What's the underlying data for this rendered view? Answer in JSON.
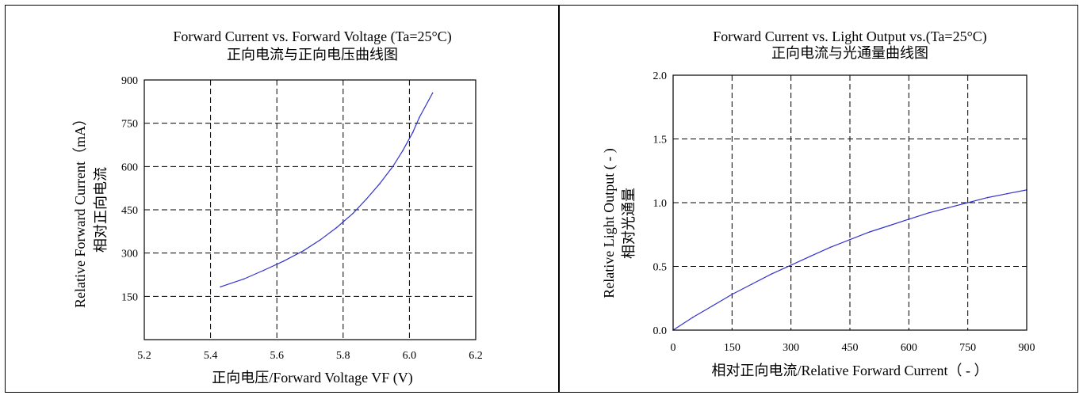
{
  "chart_data": [
    {
      "type": "line",
      "title": "Forward Current vs. Forward Voltage (Ta=25°C)",
      "subtitle": "正向电流与正向电压曲线图",
      "xlabel": "正向电压/Forward Voltage  VF (V)",
      "ylabel": "Relative Forward Current（mA）",
      "ylabel_cn": "相对正向电流",
      "xlim": [
        5.2,
        6.2
      ],
      "ylim": [
        0,
        900
      ],
      "xticks": [
        "5.2",
        "5.4",
        "5.6",
        "5.8",
        "6.0",
        "6.2"
      ],
      "yticks": [
        "150",
        "300",
        "450",
        "600",
        "750",
        "900"
      ],
      "grid": true,
      "line_color": "#3333cc",
      "series": [
        {
          "points": [
            [
              5.43,
              183
            ],
            [
              5.5,
              210
            ],
            [
              5.56,
              240
            ],
            [
              5.62,
              272
            ],
            [
              5.68,
              308
            ],
            [
              5.73,
              345
            ],
            [
              5.78,
              388
            ],
            [
              5.83,
              438
            ],
            [
              5.87,
              487
            ],
            [
              5.91,
              540
            ],
            [
              5.95,
              600
            ],
            [
              5.98,
              655
            ],
            [
              6.01,
              718
            ],
            [
              6.03,
              770
            ],
            [
              6.07,
              855
            ]
          ]
        }
      ]
    },
    {
      "type": "line",
      "title": "Forward Current vs. Light Output vs.(Ta=25°C)",
      "subtitle": "正向电流与光通量曲线图",
      "xlabel": "相对正向电流/Relative Forward Current（ - ）",
      "ylabel": "Relative Light Output ( - )",
      "ylabel_cn": "相对光通量",
      "xlim": [
        0,
        900
      ],
      "ylim": [
        0,
        2.0
      ],
      "xticks": [
        "0",
        "150",
        "300",
        "450",
        "600",
        "750",
        "900"
      ],
      "yticks": [
        "0.0",
        "0.5",
        "1.0",
        "1.5",
        "2.0"
      ],
      "grid": true,
      "line_color": "#3333cc",
      "series": [
        {
          "points": [
            [
              0,
              0.0
            ],
            [
              50,
              0.1
            ],
            [
              100,
              0.19
            ],
            [
              150,
              0.28
            ],
            [
              200,
              0.36
            ],
            [
              250,
              0.44
            ],
            [
              300,
              0.51
            ],
            [
              350,
              0.58
            ],
            [
              400,
              0.65
            ],
            [
              450,
              0.71
            ],
            [
              500,
              0.77
            ],
            [
              550,
              0.82
            ],
            [
              600,
              0.87
            ],
            [
              650,
              0.92
            ],
            [
              700,
              0.96
            ],
            [
              750,
              1.0
            ],
            [
              800,
              1.04
            ],
            [
              850,
              1.07
            ],
            [
              900,
              1.1
            ]
          ]
        }
      ]
    }
  ]
}
